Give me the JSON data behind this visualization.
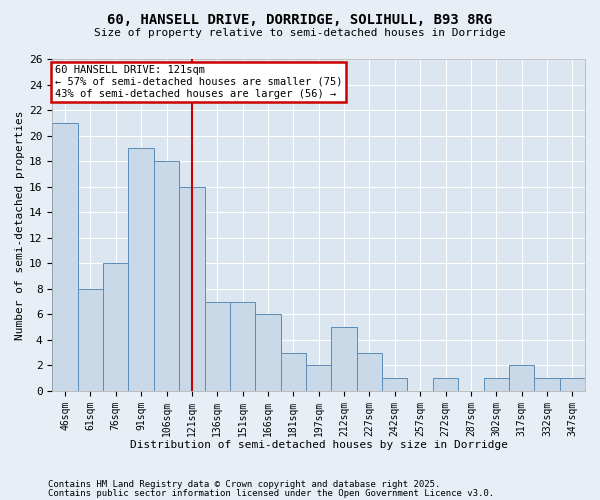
{
  "title1": "60, HANSELL DRIVE, DORRIDGE, SOLIHULL, B93 8RG",
  "title2": "Size of property relative to semi-detached houses in Dorridge",
  "xlabel": "Distribution of semi-detached houses by size in Dorridge",
  "ylabel": "Number of semi-detached properties",
  "categories": [
    "46sqm",
    "61sqm",
    "76sqm",
    "91sqm",
    "106sqm",
    "121sqm",
    "136sqm",
    "151sqm",
    "166sqm",
    "181sqm",
    "197sqm",
    "212sqm",
    "227sqm",
    "242sqm",
    "257sqm",
    "272sqm",
    "287sqm",
    "302sqm",
    "317sqm",
    "332sqm",
    "347sqm"
  ],
  "values": [
    21,
    8,
    10,
    19,
    18,
    16,
    7,
    7,
    6,
    3,
    2,
    5,
    3,
    1,
    0,
    1,
    0,
    1,
    2,
    1,
    1
  ],
  "bar_color": "#c9d9e8",
  "bar_edge_color": "#5b8db8",
  "vline_x": 5,
  "vline_color": "#cc0000",
  "annotation_title": "60 HANSELL DRIVE: 121sqm",
  "annotation_line1": "← 57% of semi-detached houses are smaller (75)",
  "annotation_line2": "43% of semi-detached houses are larger (56) →",
  "annotation_box_color": "#cc0000",
  "ylim": [
    0,
    26
  ],
  "yticks": [
    0,
    2,
    4,
    6,
    8,
    10,
    12,
    14,
    16,
    18,
    20,
    22,
    24,
    26
  ],
  "footnote1": "Contains HM Land Registry data © Crown copyright and database right 2025.",
  "footnote2": "Contains public sector information licensed under the Open Government Licence v3.0.",
  "bg_color": "#e8eef5",
  "plot_bg_color": "#dce6f0"
}
